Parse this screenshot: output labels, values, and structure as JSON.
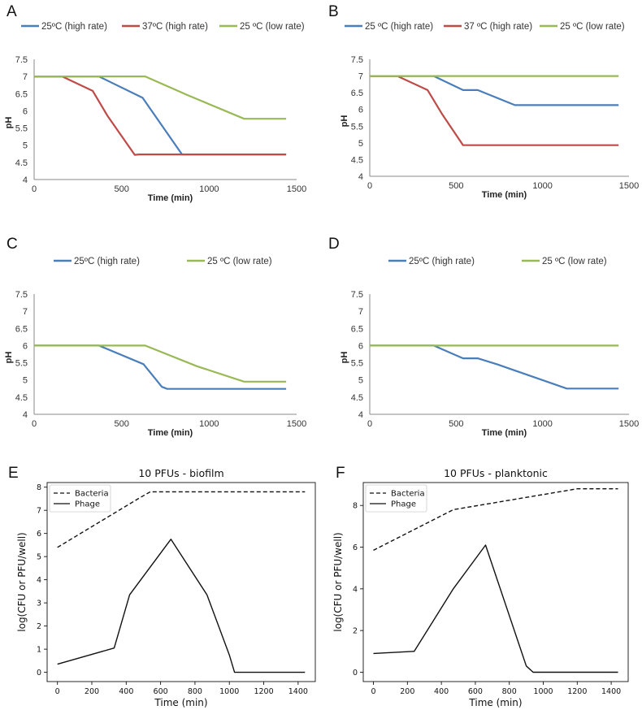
{
  "figure": {
    "description_free": true
  },
  "colors": {
    "blue": "#4a7ebb",
    "red": "#be4b48",
    "green": "#98b954",
    "black": "#111111"
  },
  "chart_data": [
    {
      "id": "A",
      "type": "line",
      "letter": "A",
      "title": "",
      "xlabel": "Time (min)",
      "ylabel": "pH",
      "xlim": [
        0,
        1500
      ],
      "ylim": [
        4,
        7.5
      ],
      "xticks": [
        0,
        500,
        1000,
        1500
      ],
      "yticks": [
        4,
        4.5,
        5,
        5.5,
        6,
        6.5,
        7,
        7.5
      ],
      "xtick_labels": [
        "0",
        "500",
        "1000",
        "1500"
      ],
      "ytick_labels": [
        "4",
        "4.5",
        "5",
        "5.5",
        "6",
        "6.5",
        "7",
        "7.5"
      ],
      "series": [
        {
          "name": "25ºC (high rate)",
          "color": "blue",
          "x": [
            0,
            370,
            620,
            845,
            1440
          ],
          "y": [
            7,
            7,
            6.38,
            4.73,
            4.73
          ]
        },
        {
          "name": "37ºC (high rate)",
          "color": "red",
          "x": [
            0,
            160,
            335,
            420,
            575,
            600,
            1440
          ],
          "y": [
            7,
            7,
            6.58,
            5.85,
            4.72,
            4.73,
            4.73
          ]
        },
        {
          "name": "25 ºC (low rate)",
          "color": "green",
          "x": [
            0,
            635,
            880,
            1200,
            1440
          ],
          "y": [
            7,
            7,
            6.45,
            5.77,
            5.77
          ]
        }
      ]
    },
    {
      "id": "B",
      "type": "line",
      "letter": "B",
      "title": "",
      "xlabel": "Time (min)",
      "ylabel": "pH",
      "xlim": [
        0,
        1500
      ],
      "ylim": [
        4,
        7.5
      ],
      "xticks": [
        0,
        500,
        1000,
        1500
      ],
      "yticks": [
        4,
        4.5,
        5,
        5.5,
        6,
        6.5,
        7,
        7.5
      ],
      "xtick_labels": [
        "0",
        "500",
        "1000",
        "1500"
      ],
      "ytick_labels": [
        "4",
        "4.5",
        "5",
        "5.5",
        "6",
        "6.5",
        "7",
        "7.5"
      ],
      "series": [
        {
          "name": "25 ºC (high rate)",
          "color": "blue",
          "x": [
            0,
            370,
            540,
            625,
            840,
            1440
          ],
          "y": [
            7,
            7,
            6.58,
            6.58,
            6.13,
            6.13
          ]
        },
        {
          "name": "37 ºC (high rate)",
          "color": "red",
          "x": [
            0,
            160,
            335,
            420,
            540,
            1440
          ],
          "y": [
            7,
            7,
            6.58,
            5.85,
            4.93,
            4.93
          ]
        },
        {
          "name": "25 ºC (low rate)",
          "color": "green",
          "x": [
            0,
            1440
          ],
          "y": [
            7,
            7
          ]
        }
      ]
    },
    {
      "id": "C",
      "type": "line",
      "letter": "C",
      "title": "",
      "xlabel": "Time (min)",
      "ylabel": "pH",
      "xlim": [
        0,
        1500
      ],
      "ylim": [
        4,
        7.5
      ],
      "xticks": [
        0,
        500,
        1000,
        1500
      ],
      "yticks": [
        4,
        4.5,
        5,
        5.5,
        6,
        6.5,
        7,
        7.5
      ],
      "xtick_labels": [
        "0",
        "500",
        "1000",
        "1500"
      ],
      "ytick_labels": [
        "4",
        "4.5",
        "5",
        "5.5",
        "6",
        "6.5",
        "7",
        "7.5"
      ],
      "series": [
        {
          "name": "25ºC (high rate)",
          "color": "blue",
          "x": [
            0,
            370,
            625,
            730,
            760,
            1440
          ],
          "y": [
            6,
            6,
            5.46,
            4.8,
            4.74,
            4.74
          ]
        },
        {
          "name": "25 ºC (low rate)",
          "color": "green",
          "x": [
            0,
            635,
            930,
            1200,
            1440
          ],
          "y": [
            6,
            6,
            5.4,
            4.95,
            4.95
          ]
        }
      ]
    },
    {
      "id": "D",
      "type": "line",
      "letter": "D",
      "title": "",
      "xlabel": "Time (min)",
      "ylabel": "pH",
      "xlim": [
        0,
        1500
      ],
      "ylim": [
        4,
        7.5
      ],
      "xticks": [
        0,
        500,
        1000,
        1500
      ],
      "yticks": [
        4,
        4.5,
        5,
        5.5,
        6,
        6.5,
        7,
        7.5
      ],
      "xtick_labels": [
        "0",
        "500",
        "1000",
        "1500"
      ],
      "ytick_labels": [
        "4",
        "4.5",
        "5",
        "5.5",
        "6",
        "6.5",
        "7",
        "7.5"
      ],
      "series": [
        {
          "name": "25ºC (high rate)",
          "color": "blue",
          "x": [
            0,
            370,
            540,
            625,
            740,
            1140,
            1440
          ],
          "y": [
            6,
            6,
            5.63,
            5.63,
            5.45,
            4.75,
            4.75
          ]
        },
        {
          "name": "25 ºC (low rate)",
          "color": "green",
          "x": [
            0,
            1440
          ],
          "y": [
            6,
            6
          ]
        }
      ]
    },
    {
      "id": "E",
      "type": "line",
      "letter": "E",
      "title": "10 PFUs - biofilm",
      "xlabel": "Time (min)",
      "ylabel": "log(CFU or PFU/well)",
      "xlim": [
        -60,
        1500
      ],
      "ylim": [
        -0.4,
        8.2
      ],
      "xticks": [
        0,
        200,
        400,
        600,
        800,
        1000,
        1200,
        1400
      ],
      "yticks": [
        0,
        1,
        2,
        3,
        4,
        5,
        6,
        7,
        8
      ],
      "xtick_labels": [
        "0",
        "200",
        "400",
        "600",
        "800",
        "1000",
        "1200",
        "1400"
      ],
      "ytick_labels": [
        "0",
        "1",
        "2",
        "3",
        "4",
        "5",
        "6",
        "7",
        "8"
      ],
      "series": [
        {
          "name": "Bacteria",
          "color": "black",
          "dash": true,
          "x": [
            0,
            470,
            540,
            1440
          ],
          "y": [
            5.4,
            7.5,
            7.8,
            7.8
          ]
        },
        {
          "name": "Phage",
          "color": "black",
          "dash": false,
          "x": [
            0,
            330,
            420,
            660,
            870,
            1000,
            1030,
            1440
          ],
          "y": [
            0.35,
            1.05,
            3.35,
            5.75,
            3.35,
            0.75,
            0,
            0
          ]
        }
      ]
    },
    {
      "id": "F",
      "type": "line",
      "letter": "F",
      "title": "10 PFUs - planktonic",
      "xlabel": "Time (min)",
      "ylabel": "log(CFU or PFU/well)",
      "xlim": [
        -60,
        1500
      ],
      "ylim": [
        -0.45,
        9.1
      ],
      "xticks": [
        0,
        200,
        400,
        600,
        800,
        1000,
        1200,
        1400
      ],
      "yticks": [
        0,
        2,
        4,
        6,
        8
      ],
      "xtick_labels": [
        "0",
        "200",
        "400",
        "600",
        "800",
        "1000",
        "1200",
        "1400"
      ],
      "ytick_labels": [
        "0",
        "2",
        "4",
        "6",
        "8"
      ],
      "series": [
        {
          "name": "Bacteria",
          "color": "black",
          "dash": true,
          "x": [
            0,
            470,
            1200,
            1440
          ],
          "y": [
            5.85,
            7.8,
            8.8,
            8.8
          ]
        },
        {
          "name": "Phage",
          "color": "black",
          "dash": false,
          "x": [
            0,
            240,
            470,
            660,
            900,
            940,
            1440
          ],
          "y": [
            0.9,
            1.0,
            4.0,
            6.1,
            0.3,
            0,
            0
          ]
        }
      ]
    }
  ]
}
